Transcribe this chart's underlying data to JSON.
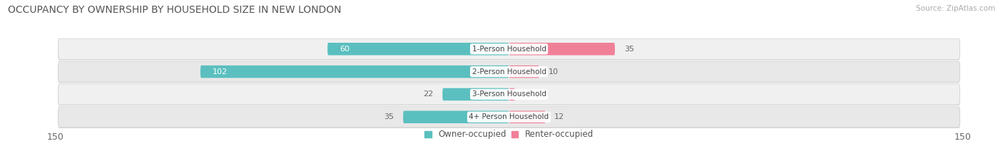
{
  "title": "OCCUPANCY BY OWNERSHIP BY HOUSEHOLD SIZE IN NEW LONDON",
  "source": "Source: ZipAtlas.com",
  "categories": [
    "1-Person Household",
    "2-Person Household",
    "3-Person Household",
    "4+ Person Household"
  ],
  "owner_values": [
    60,
    102,
    22,
    35
  ],
  "renter_values": [
    35,
    10,
    0,
    12
  ],
  "owner_color": "#5bbfbf",
  "renter_color": "#f08098",
  "row_bg_color_odd": "#f0f0f0",
  "row_bg_color_even": "#e8e8e8",
  "shadow_color": "#cccccc",
  "label_color_white": "#ffffff",
  "label_color_dark": "#666666",
  "axis_max": 150,
  "legend_owner": "Owner-occupied",
  "legend_renter": "Renter-occupied",
  "title_fontsize": 10,
  "source_fontsize": 7.5,
  "bar_label_fontsize": 8,
  "category_label_fontsize": 7.5,
  "axis_label_fontsize": 9,
  "legend_fontsize": 8.5,
  "figsize": [
    14.06,
    2.33
  ],
  "dpi": 100
}
